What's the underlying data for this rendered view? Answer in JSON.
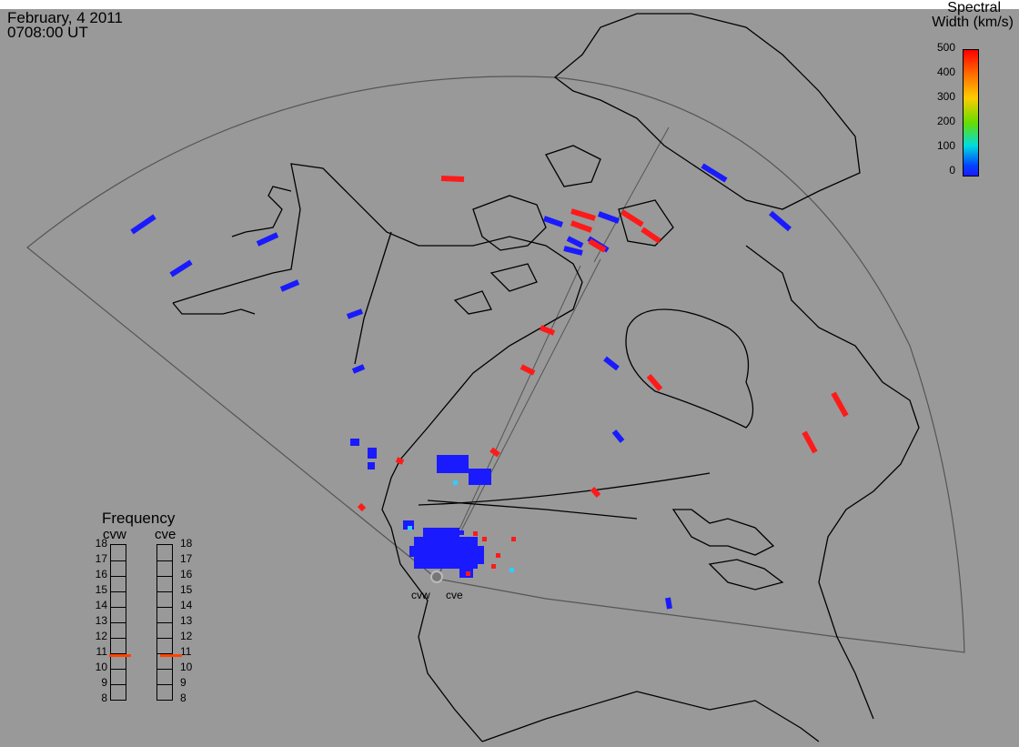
{
  "header": {
    "date": "February, 4 2011",
    "time": "0708:00 UT"
  },
  "colorbar": {
    "title_line1": "Spectral",
    "title_line2": "Width (km/s)",
    "ticks": [
      "500",
      "400",
      "300",
      "200",
      "100",
      "0"
    ],
    "colors": [
      "#ff0000",
      "#ff6600",
      "#ffcc00",
      "#66dd00",
      "#00dddd",
      "#0044ff",
      "#1a1aff"
    ]
  },
  "frequency_panel": {
    "title": "Frequency",
    "radars": [
      "cvw",
      "cve"
    ],
    "ticks": [
      "18",
      "17",
      "16",
      "15",
      "14",
      "13",
      "12",
      "11",
      "10",
      "9",
      "8"
    ],
    "cvw_frequency_mhz": 11,
    "cve_frequency_mhz": 11,
    "indicator_color": "#ff4400"
  },
  "radar_sites": [
    {
      "name": "cvw"
    },
    {
      "name": "cve"
    }
  ],
  "colors": {
    "background": "#999999",
    "coast": "#000000",
    "fov": "#555555",
    "low_width": "#1a1aff",
    "high_width": "#ff1a1a"
  }
}
